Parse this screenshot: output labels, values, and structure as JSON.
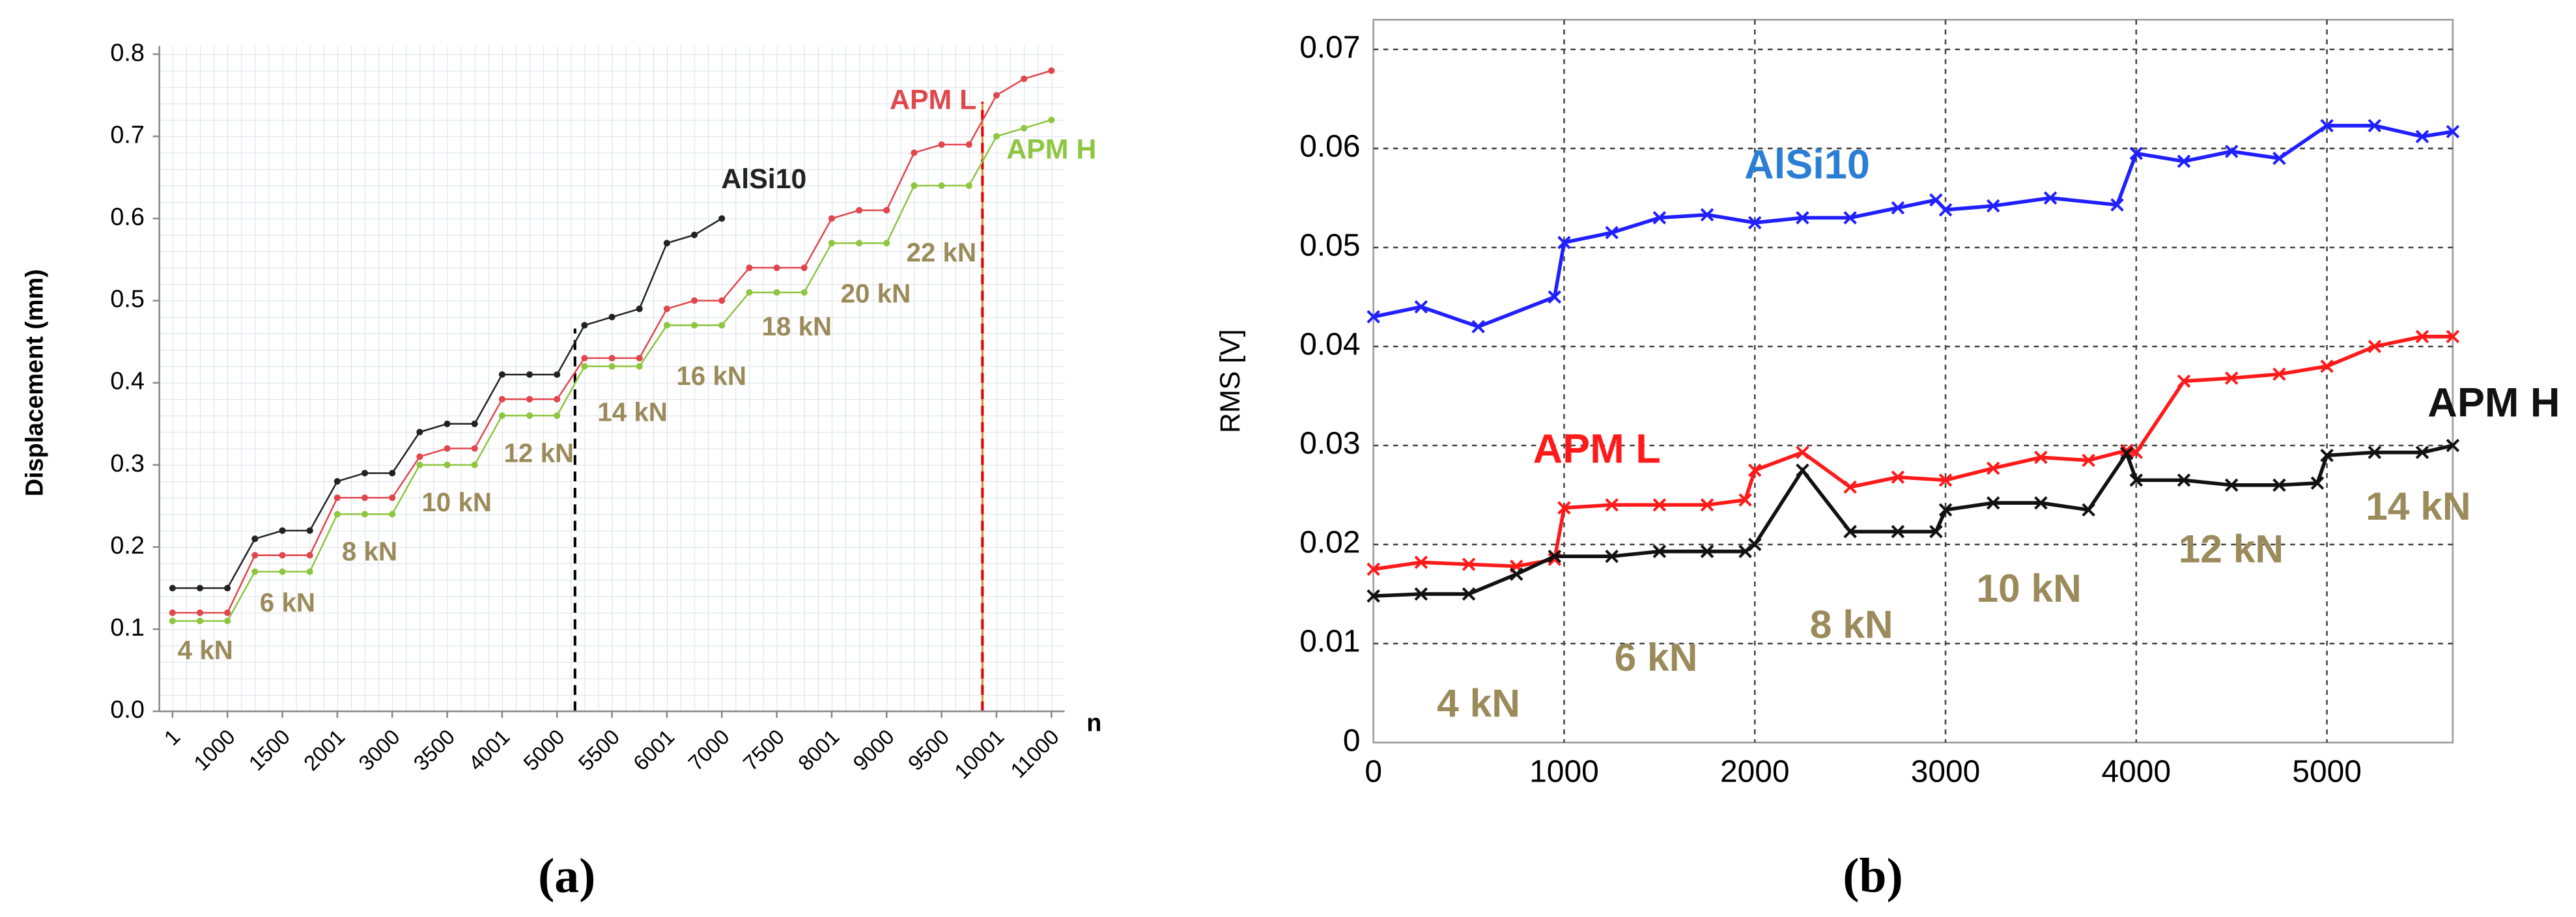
{
  "chart_data": [
    {
      "type": "line",
      "caption": "(a)",
      "y_label": "Displacement (mm)",
      "x_label": "n",
      "categories": [
        "1",
        null,
        "1000",
        null,
        "1500",
        null,
        "2001",
        null,
        "3000",
        null,
        "3500",
        null,
        "4001",
        null,
        "5000",
        null,
        "5500",
        null,
        "6001",
        null,
        "7000",
        null,
        "7500",
        null,
        "8001",
        null,
        "9000",
        null,
        "9500",
        null,
        "10001",
        null,
        "11000"
      ],
      "series": [
        {
          "name": "AlSi10",
          "color": "#222222",
          "values": [
            0.15,
            0.15,
            0.15,
            0.21,
            0.22,
            0.22,
            0.28,
            0.29,
            0.29,
            0.34,
            0.35,
            0.35,
            0.41,
            0.41,
            0.41,
            0.47,
            0.48,
            0.49,
            0.57,
            0.58,
            0.6,
            null,
            null,
            null,
            null,
            null,
            null,
            null,
            null,
            null,
            null,
            null,
            null
          ]
        },
        {
          "name": "APM L",
          "color": "#e0474c",
          "values": [
            0.12,
            0.12,
            0.12,
            0.19,
            0.19,
            0.19,
            0.26,
            0.26,
            0.26,
            0.31,
            0.32,
            0.32,
            0.38,
            0.38,
            0.38,
            0.43,
            0.43,
            0.43,
            0.49,
            0.5,
            0.5,
            0.54,
            0.54,
            0.54,
            0.6,
            0.61,
            0.61,
            0.68,
            0.69,
            0.69,
            0.75,
            0.77,
            0.78
          ]
        },
        {
          "name": "APM H",
          "color": "#8dc63f",
          "values": [
            0.11,
            0.11,
            0.11,
            0.17,
            0.17,
            0.17,
            0.24,
            0.24,
            0.24,
            0.3,
            0.3,
            0.3,
            0.36,
            0.36,
            0.36,
            0.42,
            0.42,
            0.42,
            0.47,
            0.47,
            0.47,
            0.51,
            0.51,
            0.51,
            0.57,
            0.57,
            0.57,
            0.64,
            0.64,
            0.64,
            0.7,
            0.71,
            0.72
          ]
        }
      ],
      "annotations": [
        "4 kN",
        "6 kN",
        "8 kN",
        "10 kN",
        "12 kN",
        "14 kN",
        "16 kN",
        "18 kN",
        "20 kN",
        "22 kN"
      ],
      "ylim": [
        0,
        0.8
      ],
      "yticks": [
        {
          "value": 0,
          "label": "0.0"
        },
        0.1,
        0.2,
        0.3,
        0.4,
        0.5,
        0.6,
        0.7,
        0.8
      ],
      "grid": "minor"
    },
    {
      "type": "line",
      "caption": "(b)",
      "y_label": "RMS [V]",
      "series": [
        {
          "name": "AlSi10",
          "color": "#1f1fff",
          "label_color": "#2a7fd4",
          "x": [
            0,
            250,
            550,
            950,
            1000,
            1250,
            1500,
            1750,
            2000,
            2250,
            2500,
            2750,
            2950,
            3000,
            3250,
            3550,
            3900,
            4000,
            4250,
            4500,
            4750,
            5000,
            5250,
            5500,
            5660
          ],
          "values": [
            0.043,
            0.044,
            0.042,
            0.045,
            0.0505,
            0.0515,
            0.053,
            0.0533,
            0.0525,
            0.053,
            0.053,
            0.054,
            0.0548,
            0.0538,
            0.0542,
            0.055,
            0.0543,
            0.0595,
            0.0587,
            0.0597,
            0.059,
            0.0623,
            0.0623,
            0.0612,
            0.0617
          ]
        },
        {
          "name": "APM L",
          "color": "#ff1a1a",
          "label_color": "#ff1a1a",
          "x": [
            0,
            250,
            500,
            750,
            950,
            1000,
            1250,
            1500,
            1750,
            1950,
            2000,
            2250,
            2500,
            2750,
            3000,
            3250,
            3500,
            3750,
            3950,
            4000,
            4250,
            4500,
            4750,
            5000,
            5250,
            5500,
            5660
          ],
          "values": [
            0.0175,
            0.0182,
            0.018,
            0.0178,
            0.0185,
            0.0237,
            0.024,
            0.024,
            0.024,
            0.0245,
            0.0275,
            0.0293,
            0.0258,
            0.0268,
            0.0265,
            0.0277,
            0.0288,
            0.0285,
            0.0295,
            0.0293,
            0.0365,
            0.0368,
            0.0372,
            0.038,
            0.04,
            0.041,
            0.041
          ]
        },
        {
          "name": "APM H",
          "color": "#111111",
          "label_color": "#111111",
          "x": [
            0,
            250,
            500,
            750,
            950,
            1250,
            1500,
            1750,
            1950,
            2000,
            2250,
            2500,
            2750,
            2950,
            3000,
            3250,
            3500,
            3750,
            3950,
            4000,
            4250,
            4500,
            4750,
            4950,
            5000,
            5250,
            5500,
            5660
          ],
          "values": [
            0.0148,
            0.015,
            0.015,
            0.017,
            0.0188,
            0.0188,
            0.0193,
            0.0193,
            0.0193,
            0.02,
            0.0275,
            0.0213,
            0.0213,
            0.0213,
            0.0235,
            0.0242,
            0.0242,
            0.0235,
            0.0292,
            0.0265,
            0.0265,
            0.026,
            0.026,
            0.0262,
            0.029,
            0.0293,
            0.0293,
            0.03
          ]
        }
      ],
      "annotations": [
        "4 kN",
        "6 kN",
        "8 kN",
        "10 kN",
        "12 kN",
        "14 kN"
      ],
      "xlim": [
        0,
        5660
      ],
      "xticks": [
        0,
        1000,
        2000,
        3000,
        4000,
        5000
      ],
      "ylim": [
        0,
        0.073
      ],
      "yticks": [
        0,
        0.01,
        0.02,
        0.03,
        0.04,
        0.05,
        0.06,
        0.07
      ],
      "grid": true
    }
  ]
}
